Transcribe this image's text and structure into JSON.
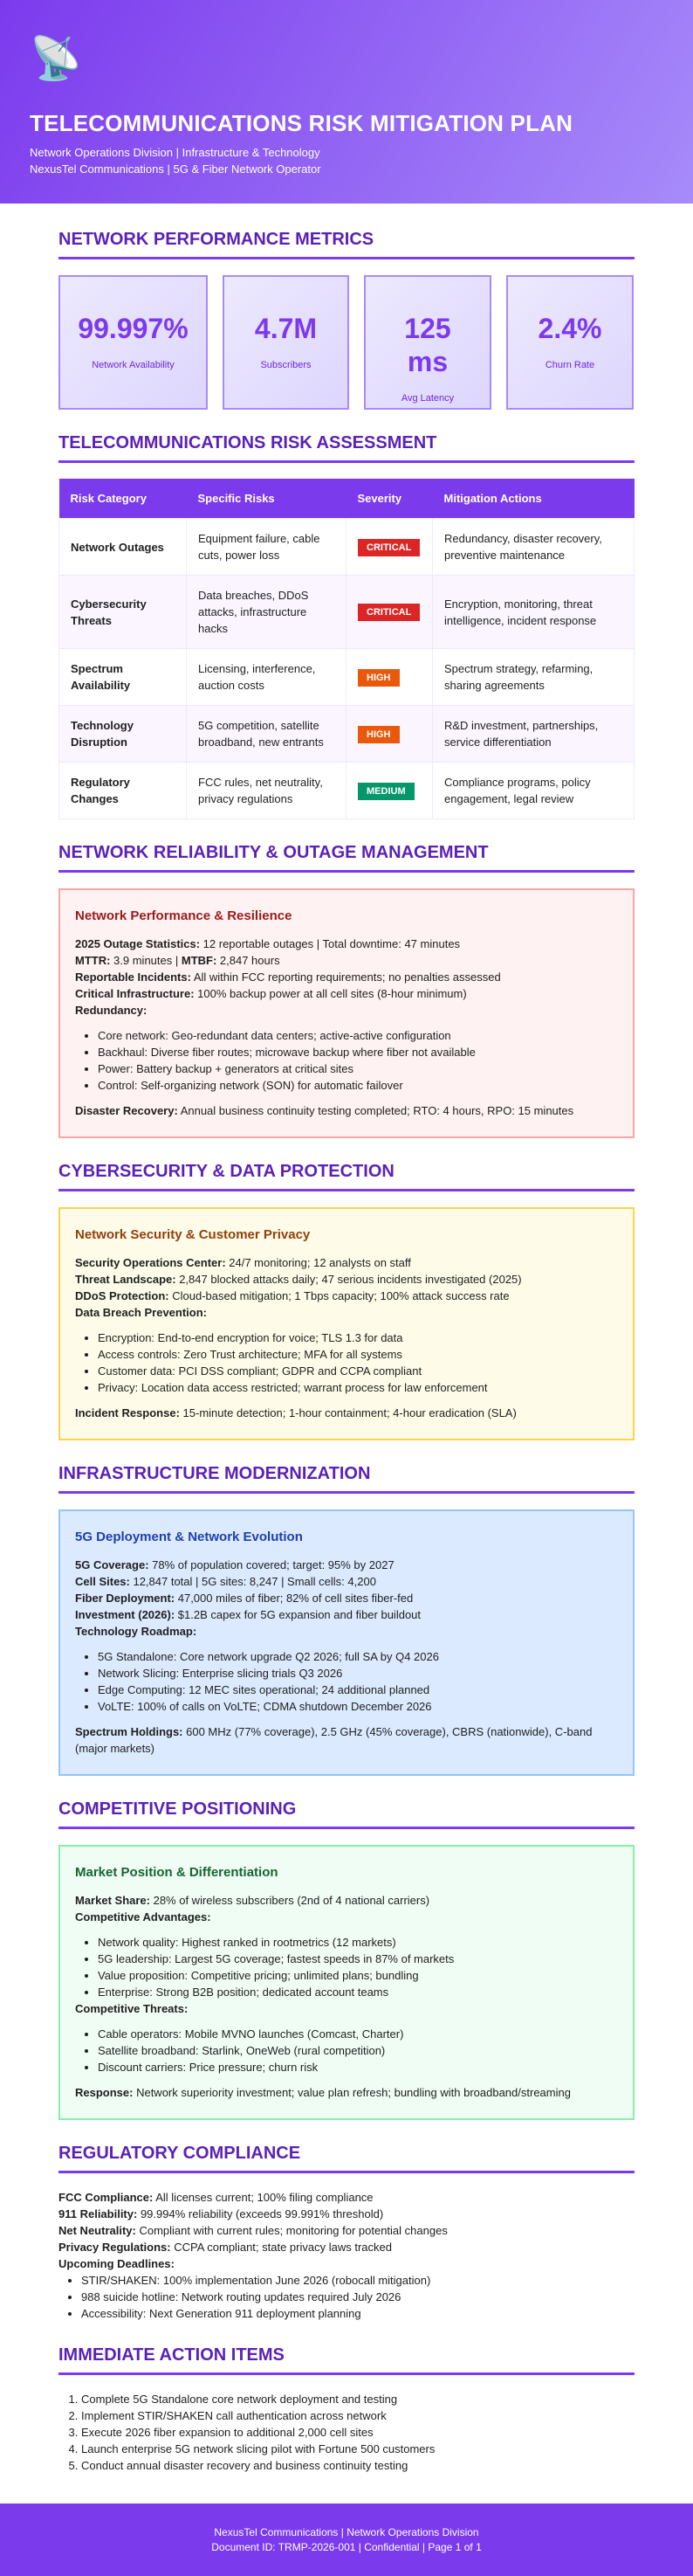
{
  "header": {
    "icon": "satellite-dish-icon",
    "icon_glyph": "📡",
    "title": "TELECOMMUNICATIONS RISK MITIGATION PLAN",
    "subtitle1": "Network Operations Division | Infrastructure & Technology",
    "subtitle2": "NexusTel Communications | 5G & Fiber Network Operator"
  },
  "metrics": {
    "title": "NETWORK PERFORMANCE METRICS",
    "cards": [
      {
        "value": "99.997%",
        "label": "Network Availability"
      },
      {
        "value": "4.7M",
        "label": "Subscribers"
      },
      {
        "value": "125 ms",
        "label": "Avg Latency"
      },
      {
        "value": "2.4%",
        "label": "Churn Rate"
      }
    ]
  },
  "risk": {
    "title": "TELECOMMUNICATIONS RISK ASSESSMENT",
    "headers": [
      "Risk Category",
      "Specific Risks",
      "Severity",
      "Mitigation Actions"
    ],
    "rows": [
      {
        "category": "Network Outages",
        "risks": "Equipment failure, cable cuts, power loss",
        "severity": "CRITICAL",
        "mitigation": "Redundancy, disaster recovery, preventive maintenance"
      },
      {
        "category": "Cybersecurity Threats",
        "risks": "Data breaches, DDoS attacks, infrastructure hacks",
        "severity": "CRITICAL",
        "mitigation": "Encryption, monitoring, threat intelligence, incident response"
      },
      {
        "category": "Spectrum Availability",
        "risks": "Licensing, interference, auction costs",
        "severity": "HIGH",
        "mitigation": "Spectrum strategy, refarming, sharing agreements"
      },
      {
        "category": "Technology Disruption",
        "risks": "5G competition, satellite broadband, new entrants",
        "severity": "HIGH",
        "mitigation": "R&D investment, partnerships, service differentiation"
      },
      {
        "category": "Regulatory Changes",
        "risks": "FCC rules, net neutrality, privacy regulations",
        "severity": "MEDIUM",
        "mitigation": "Compliance programs, policy engagement, legal review"
      }
    ],
    "severity_colors": {
      "CRITICAL": "#dc2626",
      "HIGH": "#ea580c",
      "MEDIUM": "#059669"
    }
  },
  "reliability": {
    "title": "NETWORK RELIABILITY & OUTAGE MANAGEMENT",
    "box_title": "Network Performance & Resilience",
    "p1": {
      "label": "2025 Outage Statistics:",
      "text": " 12 reportable outages | Total downtime: 47 minutes"
    },
    "p2a": {
      "label": "MTTR:",
      "text": " 3.9 minutes | "
    },
    "p2b": {
      "label": "MTBF:",
      "text": " 2,847 hours"
    },
    "p3": {
      "label": "Reportable Incidents:",
      "text": " All within FCC reporting requirements; no penalties assessed"
    },
    "p4": {
      "label": "Critical Infrastructure:",
      "text": " 100% backup power at all cell sites (8-hour minimum)"
    },
    "p5": {
      "label": "Redundancy:"
    },
    "list": [
      "Core network: Geo-redundant data centers; active-active configuration",
      "Backhaul: Diverse fiber routes; microwave backup where fiber not available",
      "Power: Battery backup + generators at critical sites",
      "Control: Self-organizing network (SON) for automatic failover"
    ],
    "p6": {
      "label": "Disaster Recovery:",
      "text": " Annual business continuity testing completed; RTO: 4 hours, RPO: 15 minutes"
    }
  },
  "cyber": {
    "title": "CYBERSECURITY & DATA PROTECTION",
    "box_title": "Network Security & Customer Privacy",
    "p1": {
      "label": "Security Operations Center:",
      "text": " 24/7 monitoring; 12 analysts on staff"
    },
    "p2": {
      "label": "Threat Landscape:",
      "text": " 2,847 blocked attacks daily; 47 serious incidents investigated (2025)"
    },
    "p3": {
      "label": "DDoS Protection:",
      "text": " Cloud-based mitigation; 1 Tbps capacity; 100% attack success rate"
    },
    "p4": {
      "label": "Data Breach Prevention:"
    },
    "list": [
      "Encryption: End-to-end encryption for voice; TLS 1.3 for data",
      "Access controls: Zero Trust architecture; MFA for all systems",
      "Customer data: PCI DSS compliant; GDPR and CCPA compliant",
      "Privacy: Location data access restricted; warrant process for law enforcement"
    ],
    "p5": {
      "label": "Incident Response:",
      "text": " 15-minute detection; 1-hour containment; 4-hour eradication (SLA)"
    }
  },
  "infra": {
    "title": "INFRASTRUCTURE MODERNIZATION",
    "box_title": "5G Deployment & Network Evolution",
    "p1": {
      "label": "5G Coverage:",
      "text": " 78% of population covered; target: 95% by 2027"
    },
    "p2": {
      "label": "Cell Sites:",
      "text": " 12,847 total | 5G sites: 8,247 | Small cells: 4,200"
    },
    "p3": {
      "label": "Fiber Deployment:",
      "text": " 47,000 miles of fiber; 82% of cell sites fiber-fed"
    },
    "p4": {
      "label": "Investment (2026):",
      "text": " $1.2B capex for 5G expansion and fiber buildout"
    },
    "p5": {
      "label": "Technology Roadmap:"
    },
    "list": [
      "5G Standalone: Core network upgrade Q2 2026; full SA by Q4 2026",
      "Network Slicing: Enterprise slicing trials Q3 2026",
      "Edge Computing: 12 MEC sites operational; 24 additional planned",
      "VoLTE: 100% of calls on VoLTE; CDMA shutdown December 2026"
    ],
    "p6": {
      "label": "Spectrum Holdings:",
      "text": " 600 MHz (77% coverage), 2.5 GHz (45% coverage), CBRS (nationwide), C-band (major markets)"
    }
  },
  "competitive": {
    "title": "COMPETITIVE POSITIONING",
    "box_title": "Market Position & Differentiation",
    "p1": {
      "label": "Market Share:",
      "text": " 28% of wireless subscribers (2nd of 4 national carriers)"
    },
    "p2": {
      "label": "Competitive Advantages:"
    },
    "list1": [
      "Network quality: Highest ranked in rootmetrics (12 markets)",
      "5G leadership: Largest 5G coverage; fastest speeds in 87% of markets",
      "Value proposition: Competitive pricing; unlimited plans; bundling",
      "Enterprise: Strong B2B position; dedicated account teams"
    ],
    "p3": {
      "label": "Competitive Threats:"
    },
    "list2": [
      "Cable operators: Mobile MVNO launches (Comcast, Charter)",
      "Satellite broadband: Starlink, OneWeb (rural competition)",
      "Discount carriers: Price pressure; churn risk"
    ],
    "p4": {
      "label": "Response:",
      "text": " Network superiority investment; value plan refresh; bundling with broadband/streaming"
    }
  },
  "regulatory": {
    "title": "REGULATORY COMPLIANCE",
    "p1": {
      "label": "FCC Compliance:",
      "text": " All licenses current; 100% filing compliance"
    },
    "p2": {
      "label": "911 Reliability:",
      "text": " 99.994% reliability (exceeds 99.991% threshold)"
    },
    "p3": {
      "label": "Net Neutrality:",
      "text": " Compliant with current rules; monitoring for potential changes"
    },
    "p4": {
      "label": "Privacy Regulations:",
      "text": " CCPA compliant; state privacy laws tracked"
    },
    "p5": {
      "label": "Upcoming Deadlines:"
    },
    "list": [
      "STIR/SHAKEN: 100% implementation June 2026 (robocall mitigation)",
      "988 suicide hotline: Network routing updates required July 2026",
      "Accessibility: Next Generation 911 deployment planning"
    ]
  },
  "actions": {
    "title": "IMMEDIATE ACTION ITEMS",
    "items": [
      "Complete 5G Standalone core network deployment and testing",
      "Implement STIR/SHAKEN call authentication across network",
      "Execute 2026 fiber expansion to additional 2,000 cell sites",
      "Launch enterprise 5G network slicing pilot with Fortune 500 customers",
      "Conduct annual disaster recovery and business continuity testing"
    ]
  },
  "footer": {
    "line1": "NexusTel Communications | Network Operations Division",
    "line2": "Document ID: TRMP-2026-001 | Confidential | Page 1 of 1"
  }
}
